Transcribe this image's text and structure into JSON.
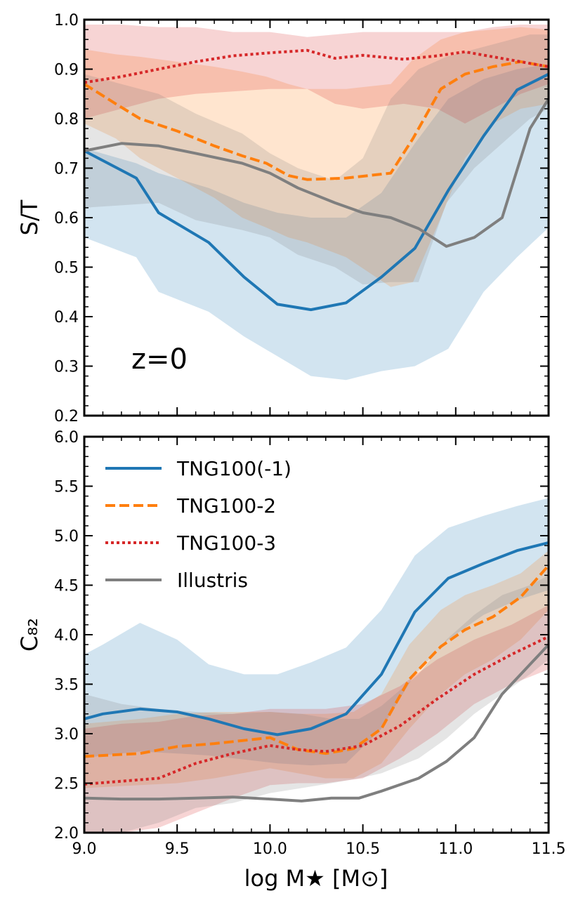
{
  "chart_data": [
    {
      "type": "line",
      "panel": "top",
      "ylabel": "S/T",
      "xlabel": "",
      "annotation": "z=0",
      "xlim": [
        9.0,
        11.5
      ],
      "ylim": [
        0.2,
        1.0
      ],
      "yticks": [
        {
          "value": 0.2,
          "label": "0.2"
        },
        {
          "value": 0.3,
          "label": "0.3"
        },
        {
          "value": 0.4,
          "label": "0.4"
        },
        {
          "value": 0.5,
          "label": "0.5"
        },
        {
          "value": 0.6,
          "label": "0.6"
        },
        {
          "value": 0.7,
          "label": "0.7"
        },
        {
          "value": 0.8,
          "label": "0.8"
        },
        {
          "value": 0.9,
          "label": "0.9"
        },
        {
          "value": 1.0,
          "label": "1.0"
        }
      ],
      "series": [
        {
          "name": "TNG100(-1)",
          "color": "#1f77b4",
          "style": "solid",
          "x": [
            9.0,
            9.28,
            9.4,
            9.67,
            9.86,
            10.04,
            10.22,
            10.41,
            10.6,
            10.78,
            10.96,
            11.15,
            11.33,
            11.5
          ],
          "y": [
            0.735,
            0.68,
            0.61,
            0.55,
            0.48,
            0.425,
            0.414,
            0.428,
            0.48,
            0.538,
            0.655,
            0.765,
            0.858,
            0.89
          ],
          "band_upper": [
            0.74,
            0.71,
            0.69,
            0.66,
            0.63,
            0.61,
            0.6,
            0.6,
            0.65,
            0.75,
            0.84,
            0.88,
            0.9,
            0.91
          ],
          "band_lower": [
            0.56,
            0.52,
            0.45,
            0.41,
            0.36,
            0.32,
            0.28,
            0.272,
            0.29,
            0.3,
            0.335,
            0.45,
            0.52,
            0.58
          ]
        },
        {
          "name": "TNG100-2",
          "color": "#ff7f0e",
          "style": "dashed",
          "x": [
            9.0,
            9.17,
            9.3,
            9.5,
            9.7,
            9.85,
            9.98,
            10.1,
            10.2,
            10.41,
            10.65,
            10.77,
            10.92,
            11.05,
            11.2,
            11.35,
            11.5
          ],
          "y": [
            0.87,
            0.83,
            0.8,
            0.775,
            0.745,
            0.725,
            0.71,
            0.685,
            0.677,
            0.68,
            0.69,
            0.76,
            0.86,
            0.89,
            0.905,
            0.915,
            0.905
          ],
          "band_upper": [
            0.94,
            0.93,
            0.925,
            0.915,
            0.905,
            0.895,
            0.885,
            0.87,
            0.86,
            0.86,
            0.87,
            0.92,
            0.96,
            0.975,
            0.98,
            0.985,
            0.98
          ],
          "band_lower": [
            0.79,
            0.76,
            0.72,
            0.68,
            0.64,
            0.6,
            0.58,
            0.56,
            0.55,
            0.52,
            0.46,
            0.47,
            0.6,
            0.72,
            0.79,
            0.82,
            0.83
          ]
        },
        {
          "name": "TNG100-3",
          "color": "#d62728",
          "style": "dotted",
          "x": [
            9.0,
            9.2,
            9.4,
            9.6,
            9.8,
            10.0,
            10.2,
            10.35,
            10.5,
            10.72,
            10.9,
            11.05,
            11.2,
            11.35,
            11.5
          ],
          "y": [
            0.873,
            0.885,
            0.9,
            0.915,
            0.927,
            0.933,
            0.938,
            0.922,
            0.928,
            0.92,
            0.927,
            0.935,
            0.925,
            0.915,
            0.905
          ],
          "band_upper": [
            0.99,
            0.99,
            0.985,
            0.985,
            0.975,
            0.975,
            0.965,
            0.97,
            0.975,
            0.975,
            0.975,
            0.975,
            0.985,
            0.99,
            0.99
          ],
          "band_lower": [
            0.8,
            0.82,
            0.84,
            0.85,
            0.855,
            0.86,
            0.86,
            0.83,
            0.82,
            0.83,
            0.82,
            0.79,
            0.82,
            0.85,
            0.87
          ]
        },
        {
          "name": "Illustris",
          "color": "#7f7f7f",
          "style": "solid",
          "x": [
            9.0,
            9.2,
            9.4,
            9.6,
            9.85,
            10.0,
            10.15,
            10.35,
            10.5,
            10.65,
            10.8,
            10.95,
            11.1,
            11.25,
            11.4,
            11.5
          ],
          "y": [
            0.735,
            0.75,
            0.745,
            0.73,
            0.71,
            0.69,
            0.66,
            0.63,
            0.61,
            0.6,
            0.578,
            0.542,
            0.56,
            0.6,
            0.78,
            0.84
          ],
          "band_upper": [
            0.89,
            0.87,
            0.85,
            0.81,
            0.77,
            0.73,
            0.7,
            0.675,
            0.72,
            0.84,
            0.9,
            0.925,
            0.94,
            0.955,
            0.97,
            0.97
          ],
          "band_lower": [
            0.62,
            0.625,
            0.63,
            0.595,
            0.575,
            0.56,
            0.525,
            0.5,
            0.465,
            0.47,
            0.47,
            0.63,
            0.7,
            0.75,
            0.8,
            0.82
          ]
        }
      ]
    },
    {
      "type": "line",
      "panel": "bottom",
      "ylabel": "C₈₂",
      "xlabel": "log M★ [M⊙]",
      "xlim": [
        9.0,
        11.5
      ],
      "ylim": [
        2.0,
        6.0
      ],
      "xticks": [
        {
          "value": 9.0,
          "label": "9.0"
        },
        {
          "value": 9.5,
          "label": "9.5"
        },
        {
          "value": 10.0,
          "label": "10.0"
        },
        {
          "value": 10.5,
          "label": "10.5"
        },
        {
          "value": 11.0,
          "label": "11.0"
        },
        {
          "value": 11.5,
          "label": "11.5"
        }
      ],
      "yticks": [
        {
          "value": 2.0,
          "label": "2.0"
        },
        {
          "value": 2.5,
          "label": "2.5"
        },
        {
          "value": 3.0,
          "label": "3.0"
        },
        {
          "value": 3.5,
          "label": "3.5"
        },
        {
          "value": 4.0,
          "label": "4.0"
        },
        {
          "value": 4.5,
          "label": "4.5"
        },
        {
          "value": 5.0,
          "label": "5.0"
        },
        {
          "value": 5.5,
          "label": "5.5"
        },
        {
          "value": 6.0,
          "label": "6.0"
        }
      ],
      "legend": {
        "position": "top-left",
        "entries": [
          "TNG100(-1)",
          "TNG100-2",
          "TNG100-3",
          "Illustris"
        ]
      },
      "series": [
        {
          "name": "TNG100(-1)",
          "color": "#1f77b4",
          "style": "solid",
          "x": [
            9.0,
            9.1,
            9.3,
            9.5,
            9.67,
            9.86,
            10.04,
            10.22,
            10.41,
            10.6,
            10.78,
            10.96,
            11.15,
            11.33,
            11.5
          ],
          "y": [
            3.15,
            3.2,
            3.25,
            3.22,
            3.15,
            3.05,
            2.99,
            3.05,
            3.2,
            3.6,
            4.23,
            4.57,
            4.72,
            4.85,
            4.93
          ],
          "band_upper": [
            3.8,
            3.9,
            4.12,
            3.95,
            3.7,
            3.6,
            3.6,
            3.72,
            3.87,
            4.25,
            4.8,
            5.08,
            5.2,
            5.3,
            5.38
          ],
          "band_lower": [
            2.75,
            2.78,
            2.82,
            2.8,
            2.78,
            2.74,
            2.7,
            2.68,
            2.7,
            3.05,
            3.6,
            3.95,
            4.2,
            4.35,
            4.45
          ]
        },
        {
          "name": "TNG100-2",
          "color": "#ff7f0e",
          "style": "dashed",
          "x": [
            9.0,
            9.3,
            9.5,
            9.7,
            9.85,
            10.0,
            10.15,
            10.3,
            10.45,
            10.6,
            10.75,
            10.92,
            11.05,
            11.2,
            11.35,
            11.5
          ],
          "y": [
            2.77,
            2.8,
            2.87,
            2.9,
            2.93,
            2.96,
            2.84,
            2.8,
            2.85,
            3.05,
            3.55,
            3.88,
            4.05,
            4.18,
            4.38,
            4.7
          ],
          "band_upper": [
            3.1,
            3.15,
            3.2,
            3.22,
            3.22,
            3.22,
            3.2,
            3.2,
            3.22,
            3.4,
            3.9,
            4.25,
            4.4,
            4.5,
            4.62,
            4.85
          ],
          "band_lower": [
            2.45,
            2.48,
            2.5,
            2.55,
            2.6,
            2.65,
            2.6,
            2.55,
            2.55,
            2.7,
            3.05,
            3.4,
            3.6,
            3.75,
            3.95,
            4.25
          ]
        },
        {
          "name": "TNG100-3",
          "color": "#d62728",
          "style": "dotted",
          "x": [
            9.0,
            9.2,
            9.4,
            9.6,
            9.8,
            10.0,
            10.15,
            10.3,
            10.5,
            10.7,
            10.9,
            11.1,
            11.3,
            11.5
          ],
          "y": [
            2.49,
            2.52,
            2.55,
            2.7,
            2.8,
            2.88,
            2.84,
            2.82,
            2.88,
            3.08,
            3.35,
            3.6,
            3.8,
            3.98
          ],
          "band_upper": [
            3.05,
            3.1,
            3.12,
            3.18,
            3.2,
            3.25,
            3.25,
            3.25,
            3.3,
            3.48,
            3.75,
            3.95,
            4.1,
            4.3
          ],
          "band_lower": [
            2.0,
            2.0,
            2.05,
            2.2,
            2.35,
            2.48,
            2.5,
            2.5,
            2.55,
            2.75,
            3.0,
            3.3,
            3.5,
            3.65
          ]
        },
        {
          "name": "Illustris",
          "color": "#7f7f7f",
          "style": "solid",
          "x": [
            9.0,
            9.2,
            9.4,
            9.6,
            9.8,
            10.0,
            10.17,
            10.33,
            10.48,
            10.6,
            10.8,
            10.95,
            11.1,
            11.25,
            11.4,
            11.5
          ],
          "y": [
            2.35,
            2.34,
            2.34,
            2.35,
            2.36,
            2.34,
            2.32,
            2.35,
            2.35,
            2.42,
            2.55,
            2.72,
            2.96,
            3.4,
            3.7,
            3.9
          ],
          "band_upper": [
            3.4,
            3.3,
            3.25,
            3.22,
            3.2,
            3.22,
            3.2,
            3.15,
            3.15,
            3.28,
            3.6,
            3.95,
            4.2,
            4.4,
            4.5,
            4.6
          ],
          "band_lower": [
            2.0,
            2.0,
            2.1,
            2.25,
            2.3,
            2.4,
            2.45,
            2.5,
            2.55,
            2.6,
            2.75,
            2.95,
            3.2,
            3.4,
            3.6,
            3.75
          ]
        }
      ]
    }
  ]
}
